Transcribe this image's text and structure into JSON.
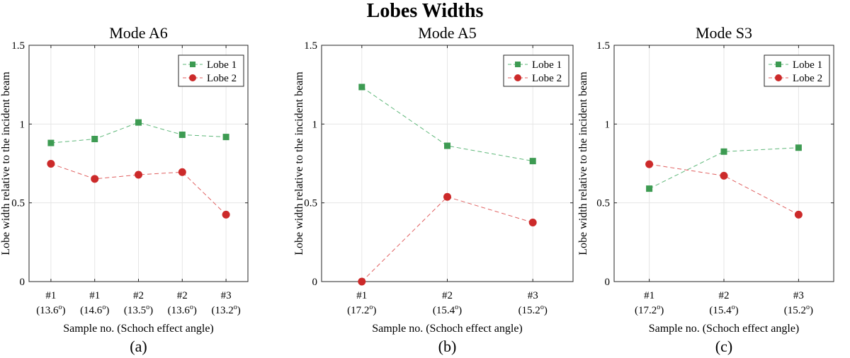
{
  "figure": {
    "title": "Lobes Widths"
  },
  "colors": {
    "lobe1": "#3d9b52",
    "lobe1_line": "#5fb87a",
    "lobe2": "#cc2a2a",
    "lobe2_line": "#e06060"
  },
  "chart_data": [
    {
      "type": "line",
      "title": "Mode A6",
      "panel_label": "(a)",
      "xlabel": "Sample no. (Schoch effect angle)",
      "ylabel": "Lobe width relative to the incident beam",
      "ylim": [
        0,
        1.5
      ],
      "yticks": [
        "0",
        "0.5",
        "1",
        "1.5"
      ],
      "ytick_values": [
        0,
        0.5,
        1,
        1.5
      ],
      "legend_position": "top-right",
      "categories": [
        {
          "num": "#1",
          "angle": "(13.6",
          "deg": "o",
          "close": ")"
        },
        {
          "num": "#1",
          "angle": "(14.6",
          "deg": "o",
          "close": ")"
        },
        {
          "num": "#2",
          "angle": "(13.5",
          "deg": "o",
          "close": ")"
        },
        {
          "num": "#2",
          "angle": "(13.6",
          "deg": "o",
          "close": ")"
        },
        {
          "num": "#3",
          "angle": "(13.2",
          "deg": "o",
          "close": ")"
        }
      ],
      "series": [
        {
          "name": "Lobe 1",
          "marker": "square",
          "values": [
            0.88,
            0.905,
            1.01,
            0.932,
            0.918
          ]
        },
        {
          "name": "Lobe 2",
          "marker": "circle",
          "values": [
            0.748,
            0.652,
            0.678,
            0.695,
            0.425
          ]
        }
      ]
    },
    {
      "type": "line",
      "title": "Mode A5",
      "panel_label": "(b)",
      "xlabel": "Sample no. (Schoch effect angle)",
      "ylabel": "Lobe width relative to the incident beam",
      "ylim": [
        0,
        1.5
      ],
      "yticks": [
        "0",
        "0.5",
        "1",
        "1.5"
      ],
      "ytick_values": [
        0,
        0.5,
        1,
        1.5
      ],
      "legend_position": "top-right",
      "categories": [
        {
          "num": "#1",
          "angle": "(17.2",
          "deg": "o",
          "close": ")"
        },
        {
          "num": "#2",
          "angle": "(15.4",
          "deg": "o",
          "close": ")"
        },
        {
          "num": "#3",
          "angle": "(15.2",
          "deg": "o",
          "close": ")"
        }
      ],
      "series": [
        {
          "name": "Lobe 1",
          "marker": "square",
          "values": [
            1.235,
            0.862,
            0.765
          ]
        },
        {
          "name": "Lobe 2",
          "marker": "circle",
          "values": [
            0.0,
            0.538,
            0.375
          ]
        }
      ]
    },
    {
      "type": "line",
      "title": "Mode S3",
      "panel_label": "(c)",
      "xlabel": "Sample no. (Schoch effect angle)",
      "ylabel": "Lobe width relative to the incident beam",
      "ylim": [
        0,
        1.5
      ],
      "yticks": [
        "0",
        "0.5",
        "1",
        "1.5"
      ],
      "ytick_values": [
        0,
        0.5,
        1,
        1.5
      ],
      "legend_position": "top-right",
      "categories": [
        {
          "num": "#1",
          "angle": "(17.2",
          "deg": "o",
          "close": ")"
        },
        {
          "num": "#2",
          "angle": "(15.4",
          "deg": "o",
          "close": ")"
        },
        {
          "num": "#3",
          "angle": "(15.2",
          "deg": "o",
          "close": ")"
        }
      ],
      "series": [
        {
          "name": "Lobe 1",
          "marker": "square",
          "values": [
            0.59,
            0.825,
            0.85
          ]
        },
        {
          "name": "Lobe 2",
          "marker": "circle",
          "values": [
            0.745,
            0.672,
            0.425
          ]
        }
      ]
    }
  ]
}
